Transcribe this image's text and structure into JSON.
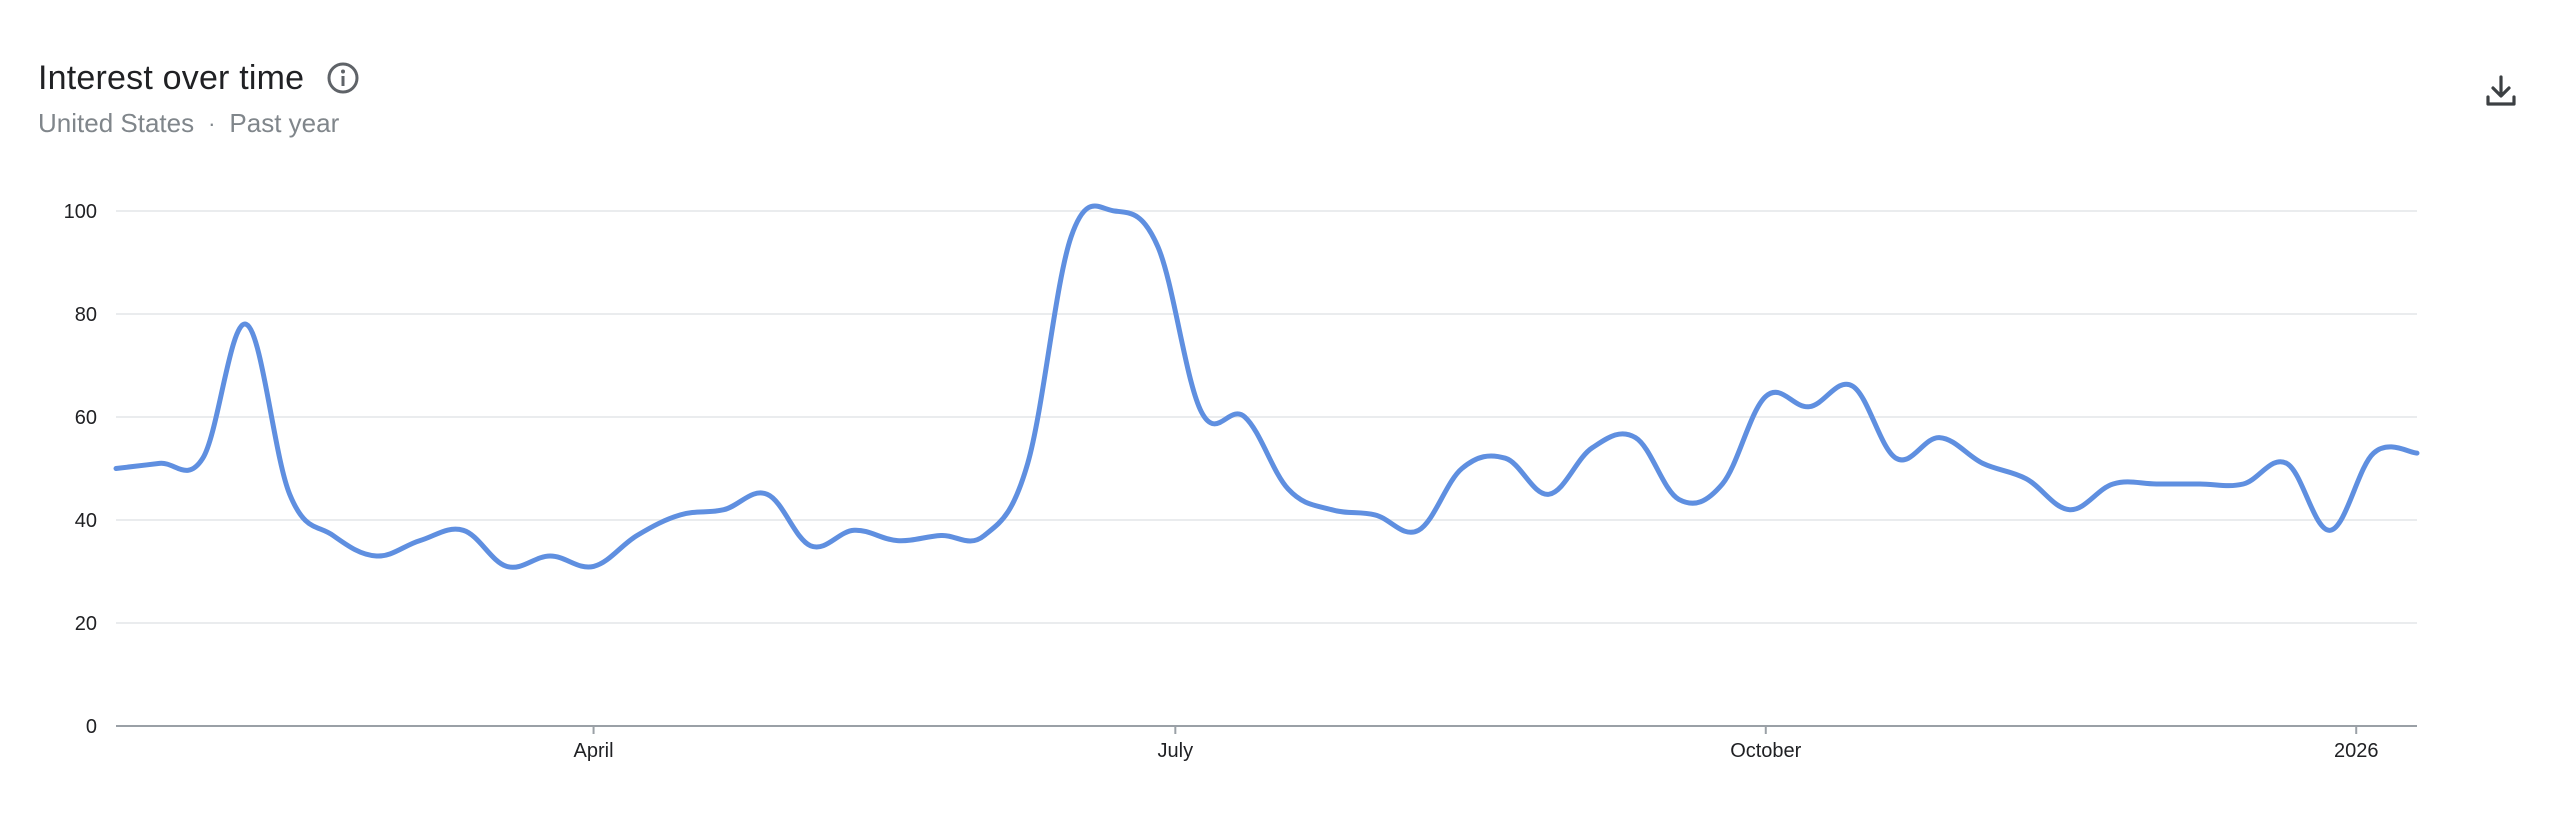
{
  "header": {
    "title": "Interest over time",
    "region": "United States",
    "separator": "·",
    "period": "Past year"
  },
  "icons": {
    "info": "info-icon",
    "download": "download-icon"
  },
  "chart_data": {
    "type": "line",
    "title": "Interest over time",
    "xlabel": "",
    "ylabel": "",
    "ylim": [
      0,
      100
    ],
    "yticks": [
      0,
      20,
      40,
      60,
      80,
      100
    ],
    "grid": true,
    "x_tick_labels": [
      {
        "label": "April",
        "week": 11
      },
      {
        "label": "July",
        "week": 24.4
      },
      {
        "label": "October",
        "week": 38
      },
      {
        "label": "2026",
        "week": 51.6
      }
    ],
    "series": [
      {
        "color": "#5f8fe0",
        "x_weeks": [
          0,
          1,
          2,
          3,
          4,
          5,
          6,
          7,
          8,
          9,
          10,
          11,
          12,
          13,
          14,
          15,
          16,
          17,
          18,
          19,
          20,
          21,
          22,
          23,
          24,
          25,
          26,
          27,
          28,
          29,
          30,
          31,
          32,
          33,
          34,
          35,
          36,
          37,
          38,
          39,
          40,
          41,
          42,
          43,
          44,
          45,
          46,
          47,
          48,
          49,
          50,
          51,
          52,
          53
        ],
        "values": [
          50,
          51,
          52,
          78,
          45,
          37,
          33,
          36,
          38,
          31,
          33,
          31,
          37,
          41,
          42,
          45,
          35,
          38,
          36,
          37,
          37,
          51,
          95,
          100,
          93,
          61,
          60,
          46,
          42,
          41,
          38,
          50,
          52,
          45,
          54,
          56,
          44,
          47,
          64,
          62,
          66,
          52,
          56,
          51,
          48,
          42,
          47,
          47,
          47,
          47,
          51,
          38,
          53,
          53
        ]
      }
    ]
  }
}
